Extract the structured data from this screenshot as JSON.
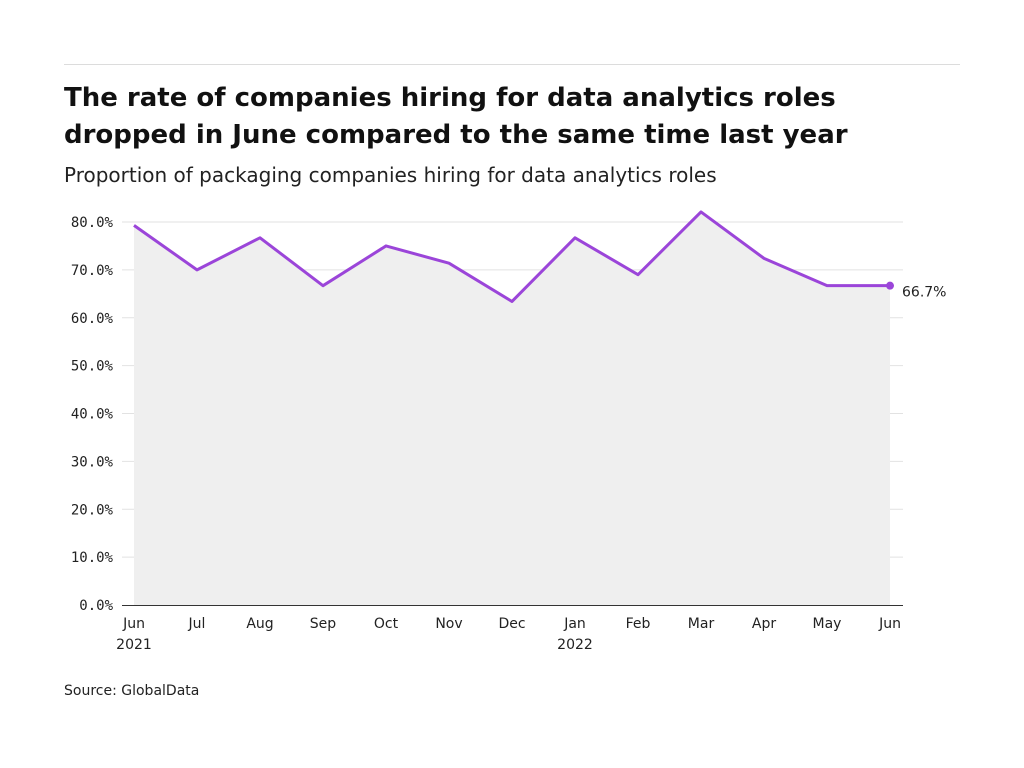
{
  "title": "The rate of companies hiring for data analytics roles dropped in June compared to the same time last year",
  "subtitle": "Proportion of packaging companies hiring for data analytics roles",
  "source": "Source: GlobalData",
  "colors": {
    "line": "#9b45d9",
    "area": "#efefef",
    "grid": "#e2e2e2",
    "axis": "#333333"
  },
  "chart_data": {
    "type": "area",
    "x": [
      "Jun 2021",
      "Jul 2021",
      "Aug 2021",
      "Sep 2021",
      "Oct 2021",
      "Nov 2021",
      "Dec 2021",
      "Jan 2022",
      "Feb 2022",
      "Mar 2022",
      "Apr 2022",
      "May 2022",
      "Jun 2022"
    ],
    "tick_labels": [
      {
        "month": "Jun",
        "year": "2021"
      },
      {
        "month": "Jul",
        "year": ""
      },
      {
        "month": "Aug",
        "year": ""
      },
      {
        "month": "Sep",
        "year": ""
      },
      {
        "month": "Oct",
        "year": ""
      },
      {
        "month": "Nov",
        "year": ""
      },
      {
        "month": "Dec",
        "year": ""
      },
      {
        "month": "Jan",
        "year": "2022"
      },
      {
        "month": "Feb",
        "year": ""
      },
      {
        "month": "Mar",
        "year": ""
      },
      {
        "month": "Apr",
        "year": ""
      },
      {
        "month": "May",
        "year": ""
      },
      {
        "month": "Jun",
        "year": ""
      }
    ],
    "series": [
      {
        "values": [
          79.3,
          70.0,
          76.7,
          66.7,
          75.0,
          71.4,
          63.4,
          76.7,
          69.0,
          82.1,
          72.4,
          66.7,
          66.7
        ]
      }
    ],
    "ylim": [
      0,
      80
    ],
    "yticks": [
      "0.0%",
      "10.0%",
      "20.0%",
      "30.0%",
      "40.0%",
      "50.0%",
      "60.0%",
      "70.0%",
      "80.0%"
    ],
    "end_label": "66.7%",
    "grid": true,
    "xlabel": "",
    "ylabel": ""
  }
}
